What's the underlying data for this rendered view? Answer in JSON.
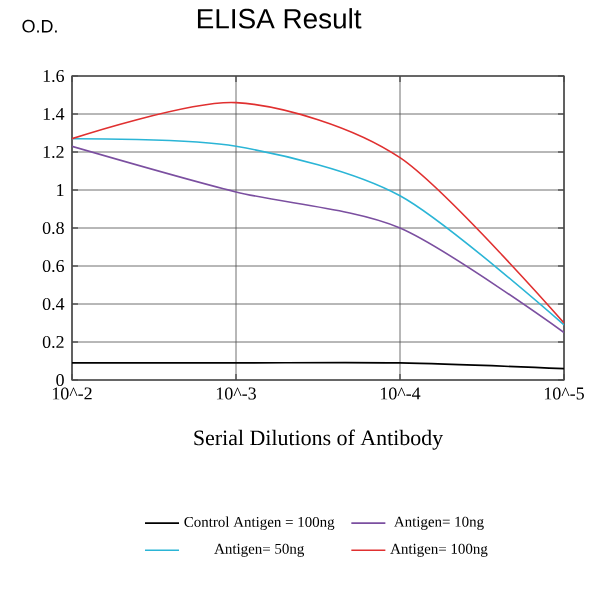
{
  "chart_data": {
    "type": "line",
    "title": "ELISA Result",
    "ylabel": "O.D.",
    "xlabel": "Serial Dilutions of Antibody",
    "categories": [
      "10^-2",
      "10^-3",
      "10^-4",
      "10^-5"
    ],
    "series": [
      {
        "name": "Control Antigen = 100ng",
        "color": "#000000",
        "values": [
          0.09,
          0.09,
          0.09,
          0.06
        ]
      },
      {
        "name": "Antigen= 10ng",
        "color": "#7b4fa0",
        "values": [
          1.23,
          0.99,
          0.8,
          0.25
        ]
      },
      {
        "name": "Antigen= 50ng",
        "color": "#2bb5d6",
        "values": [
          1.27,
          1.23,
          0.97,
          0.29
        ]
      },
      {
        "name": "Antigen= 100ng",
        "color": "#e03030",
        "values": [
          1.27,
          1.46,
          1.17,
          0.3
        ]
      }
    ],
    "ylim": [
      0,
      1.6
    ],
    "yticks": [
      0,
      0.2,
      0.4,
      0.6,
      0.8,
      1,
      1.2,
      1.4,
      1.6
    ],
    "grid": true,
    "legend": "bottom",
    "marker": "none",
    "line_style": "solid"
  }
}
